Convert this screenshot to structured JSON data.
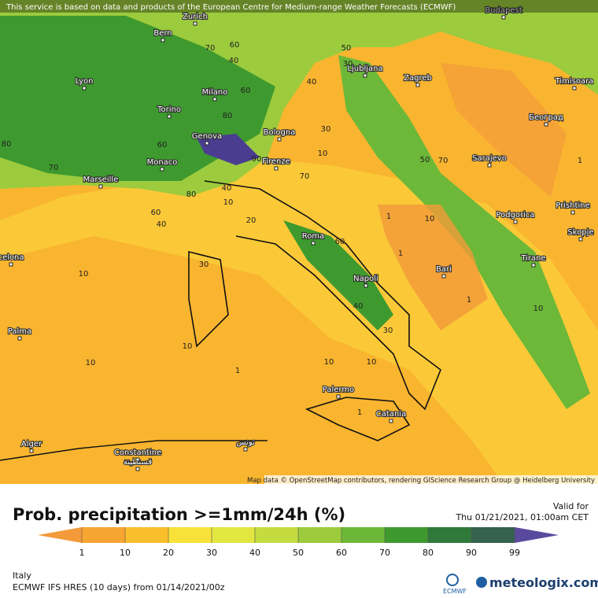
{
  "header": {
    "notice": "This service is based on data and products of the European Centre for Medium-range Weather Forecasts (ECMWF)",
    "attribution": "Map data © OpenStreetMap contributors, rendering GIScience Research Group @ Heidelberg University"
  },
  "map": {
    "cities": [
      "Bern",
      "Zurich",
      "Budapest",
      "Lyon",
      "Milano",
      "Torino",
      "Ljubljana",
      "Zagreb",
      "Timisoara",
      "Genova",
      "Bologna",
      "Београд",
      "Sarajevo",
      "Monaco",
      "Marseille",
      "Firenze",
      "Podgorica",
      "Prishtine",
      "Roma",
      "Skopje",
      "celona",
      "Tirane",
      "Bari",
      "Napoli",
      "Palma",
      "Palermo",
      "Catania",
      "Alger",
      "Constantine",
      "قسنطينة",
      "تونس"
    ],
    "contour_labels": [
      70,
      60,
      40,
      50,
      30,
      40,
      80,
      60,
      60,
      70,
      10,
      30,
      40,
      10,
      80,
      60,
      40,
      20,
      30,
      10,
      1,
      10,
      1,
      60,
      40,
      30,
      1,
      10,
      10,
      10,
      1,
      10,
      10,
      1,
      1,
      80,
      70,
      90,
      50,
      70
    ]
  },
  "legend": {
    "title": "Prob. precipitation >=1mm/24h (%)",
    "valid_label": "Valid for",
    "valid_time": "Thu 01/21/2021, 01:00am CET",
    "ticks": [
      1,
      10,
      20,
      30,
      40,
      50,
      60,
      70,
      80,
      90,
      99
    ],
    "colors": [
      "#f39a3a",
      "#f7a531",
      "#fbbe2c",
      "#f8e23a",
      "#e3e640",
      "#c4dc3f",
      "#9ccb3d",
      "#6db838",
      "#3e9a2f",
      "#2f7a3a",
      "#35614f",
      "#5a4a9e"
    ]
  },
  "footer": {
    "region": "Italy",
    "model": "ECMWF IFS HRES (10 days) from 01/14/2021/00z",
    "ecmwf": "ECMWF",
    "brand": "meteologix.com"
  }
}
